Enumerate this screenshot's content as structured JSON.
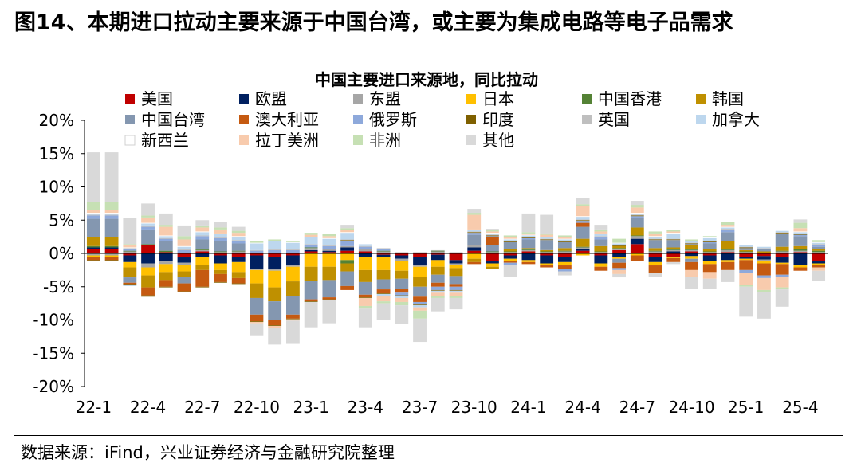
{
  "figure": {
    "title": "图14、本期进口拉动主要来源于中国台湾，或主要为集成电路等电子品需求",
    "source": "数据来源：iFind，兴业证券经济与金融研究院整理"
  },
  "chart_data": {
    "type": "bar",
    "stacked": true,
    "title": "中国主要进口来源地，同比拉动",
    "xlabel": "",
    "ylabel": "",
    "ylim": [
      -20,
      20
    ],
    "ytick_labels": [
      "20%",
      "15%",
      "10%",
      "5%",
      "0%",
      "-5%",
      "-10%",
      "-15%",
      "-20%"
    ],
    "grid": false,
    "legend_position": "top",
    "categories": [
      "22-1",
      "22-2",
      "22-3",
      "22-4",
      "22-5",
      "22-6",
      "22-7",
      "22-8",
      "22-9",
      "22-10",
      "22-11",
      "22-12",
      "23-1",
      "23-2",
      "23-3",
      "23-4",
      "23-5",
      "23-6",
      "23-7",
      "23-8",
      "23-9",
      "23-10",
      "23-11",
      "23-12",
      "24-1",
      "24-2",
      "24-3",
      "24-4",
      "24-5",
      "24-6",
      "24-7",
      "24-8",
      "24-9",
      "24-10",
      "24-11",
      "24-12",
      "25-1",
      "25-2",
      "25-3",
      "25-4",
      "25-5"
    ],
    "x_tick_labels": [
      "22-1",
      "22-4",
      "22-7",
      "22-10",
      "23-1",
      "23-4",
      "23-7",
      "23-10",
      "24-1",
      "24-4",
      "24-7",
      "24-10",
      "25-1",
      "25-4"
    ],
    "series": [
      {
        "name": "美国",
        "color": "#C00000",
        "values": [
          0.6,
          0.6,
          -0.3,
          1.2,
          0.2,
          -0.6,
          0.3,
          -0.3,
          -0.5,
          -0.3,
          -0.5,
          -0.3,
          0.3,
          0.2,
          0.4,
          0.3,
          -0.2,
          -0.3,
          -0.5,
          -0.2,
          -1.0,
          0.4,
          -1.2,
          -0.3,
          0.3,
          -0.3,
          -0.5,
          0.4,
          -0.3,
          0.5,
          1.4,
          -0.5,
          -0.5,
          0.3,
          -0.3,
          0.2,
          -0.5,
          -0.4,
          -0.6,
          0.2,
          -1.2
        ]
      },
      {
        "name": "欧盟",
        "color": "#002060",
        "values": [
          0.3,
          0.3,
          -1.0,
          -1.5,
          -1.2,
          -0.8,
          -0.5,
          -1.2,
          -0.8,
          -2.0,
          -1.8,
          -1.5,
          0.2,
          0.2,
          0.5,
          -0.5,
          -0.3,
          -0.5,
          -1.2,
          -0.8,
          -0.5,
          0.5,
          -0.3,
          -0.5,
          -1.0,
          -1.2,
          -0.8,
          0.2,
          -1.2,
          -0.5,
          0.8,
          -0.8,
          0.3,
          -0.4,
          -0.8,
          -1.0,
          -0.3,
          -0.5,
          -0.8,
          -1.8,
          -0.3
        ]
      },
      {
        "name": "东盟",
        "color": "#A6A6A6",
        "values": [
          -0.3,
          -0.3,
          0.3,
          -0.6,
          -0.4,
          -0.3,
          0.2,
          0.2,
          0.3,
          -0.2,
          -0.3,
          -0.2,
          0.3,
          0.2,
          0.2,
          0.3,
          0.3,
          -0.3,
          -0.3,
          0.3,
          -0.2,
          0.3,
          0.2,
          0.2,
          0.2,
          0.2,
          0.3,
          0.3,
          0.2,
          0.2,
          0.4,
          0.3,
          0.2,
          0.2,
          0.2,
          0.3,
          0.2,
          -0.3,
          0.3,
          0.2,
          0.2
        ]
      },
      {
        "name": "日本",
        "color": "#FFC000",
        "values": [
          -0.3,
          -0.3,
          -0.8,
          -1.2,
          -1.2,
          -1.0,
          -1.2,
          -1.0,
          -1.5,
          -2.0,
          -2.5,
          -2.2,
          -2.0,
          -2.0,
          -1.0,
          -2.0,
          -2.0,
          -1.5,
          -1.5,
          -1.0,
          -0.5,
          -0.8,
          -0.5,
          -0.3,
          -0.3,
          -0.3,
          -0.5,
          -0.3,
          -0.5,
          -0.3,
          -0.3,
          -0.5,
          -0.2,
          -0.4,
          -0.5,
          -0.3,
          -0.2,
          -0.3,
          -0.2,
          -0.3,
          -0.2
        ]
      },
      {
        "name": "中国香港",
        "color": "#548235",
        "values": [
          0.2,
          0.2,
          0.1,
          0.2,
          0.2,
          0.1,
          0.1,
          0.1,
          0.1,
          0.1,
          0.1,
          0.1,
          0.1,
          0.1,
          -0.5,
          0.1,
          0.1,
          0.1,
          0.1,
          0.1,
          0.1,
          0.1,
          0.1,
          0.1,
          0.1,
          0.1,
          0.1,
          0.1,
          0.1,
          0.1,
          0.1,
          0.1,
          0.1,
          0.1,
          0.1,
          0.2,
          0.1,
          0.1,
          0.1,
          0.2,
          0.2
        ]
      },
      {
        "name": "韩国",
        "color": "#BF9000",
        "values": [
          1.3,
          1.3,
          -1.5,
          -1.8,
          -1.2,
          -0.8,
          -0.8,
          -0.6,
          -0.9,
          -2.2,
          -2.1,
          -2.2,
          -2.1,
          -2.0,
          -1.2,
          -1.8,
          -1.4,
          -1.2,
          -1.5,
          -1.2,
          -1.2,
          -0.5,
          -0.3,
          0.3,
          0.2,
          0.2,
          0.4,
          1.2,
          0.8,
          0.3,
          1.2,
          0.4,
          0.3,
          0.6,
          0.4,
          1.2,
          0.2,
          0.2,
          0.6,
          0.5,
          0.3
        ]
      },
      {
        "name": "中国台湾",
        "color": "#8497B0",
        "values": [
          2.8,
          2.8,
          -0.8,
          2.2,
          1.5,
          -1.0,
          1.5,
          1.5,
          1.1,
          -2.5,
          -2.8,
          -2.8,
          -2.8,
          -2.6,
          -2.2,
          -1.9,
          -1.5,
          -1.5,
          -1.5,
          -1.2,
          -1.2,
          1.5,
          0.9,
          1.1,
          1.3,
          1.3,
          0.9,
          1.8,
          1.0,
          -0.6,
          1.4,
          1.0,
          0.9,
          -0.5,
          0.8,
          1.3,
          0.3,
          0.3,
          2.0,
          1.5,
          0.3
        ]
      },
      {
        "name": "澳大利亚",
        "color": "#C55A11",
        "values": [
          -0.4,
          -0.4,
          -0.2,
          -1.2,
          -1.0,
          -1.2,
          -2.5,
          -1.2,
          -0.8,
          -1.0,
          -0.8,
          -0.6,
          -0.3,
          -0.3,
          -0.6,
          -0.4,
          -0.6,
          -0.6,
          -0.8,
          -0.6,
          -0.4,
          -0.3,
          1.2,
          -0.3,
          -0.3,
          -0.3,
          -0.5,
          0.6,
          -0.6,
          -0.8,
          -0.8,
          -1.2,
          -0.6,
          -1.2,
          -1.2,
          -1.2,
          -1.5,
          -1.8,
          -1.6,
          -0.5,
          -0.4
        ]
      },
      {
        "name": "俄罗斯",
        "color": "#8EA9DB",
        "values": [
          0.5,
          0.5,
          0.3,
          0.4,
          0.3,
          0.4,
          0.5,
          0.5,
          0.4,
          0.3,
          0.4,
          0.4,
          0.4,
          0.4,
          0.8,
          0.3,
          0.3,
          -0.4,
          -0.4,
          -0.5,
          -0.5,
          0.3,
          0.2,
          -0.3,
          0.2,
          0.2,
          -0.4,
          0.3,
          0.3,
          -0.3,
          0.3,
          0.2,
          0.2,
          0.2,
          0.2,
          0.3,
          -0.4,
          -0.4,
          -0.3,
          0.2,
          0.2
        ]
      },
      {
        "name": "印度",
        "color": "#7F6000",
        "values": [
          -0.1,
          -0.1,
          -0.1,
          -0.2,
          -0.1,
          -0.1,
          -0.1,
          -0.1,
          -0.1,
          -0.1,
          -0.1,
          -0.1,
          -0.1,
          -0.1,
          0.1,
          -0.1,
          -0.1,
          -0.1,
          -0.1,
          -0.1,
          -0.1,
          0.1,
          0.1,
          0.1,
          0.1,
          0.1,
          0.1,
          0.1,
          0.1,
          0.1,
          0.1,
          0.1,
          0.1,
          0.1,
          0.1,
          0.1,
          0.1,
          0.1,
          0.1,
          0.1,
          0.1
        ]
      },
      {
        "name": "英国",
        "color": "#BFBFBF",
        "values": [
          0.1,
          0.1,
          0.1,
          0.2,
          0.1,
          0.1,
          0.1,
          0.1,
          0.1,
          0.1,
          0.1,
          0.1,
          0.1,
          0.1,
          0.1,
          0.1,
          0.1,
          0.1,
          0.1,
          0.1,
          0.1,
          0.1,
          0.1,
          0.1,
          0.1,
          0.1,
          0.1,
          0.1,
          0.1,
          0.1,
          0.1,
          0.1,
          0.1,
          0.1,
          0.1,
          0.1,
          0.1,
          0.1,
          0.1,
          0.1,
          0.1
        ]
      },
      {
        "name": "加拿大",
        "color": "#BDD7EE",
        "values": [
          0.2,
          0.2,
          -0.2,
          0.3,
          0.3,
          0.4,
          0.5,
          0.5,
          0.5,
          1.0,
          1.2,
          1.0,
          1.0,
          1.0,
          1.0,
          0.3,
          -0.3,
          -0.3,
          -0.3,
          -0.3,
          -0.3,
          0.2,
          0.2,
          0.2,
          0.2,
          0.2,
          0.2,
          0.4,
          0.3,
          0.2,
          0.2,
          0.3,
          0.8,
          0.2,
          0.4,
          0.2,
          0.2,
          0.2,
          0.2,
          0.2,
          0.2
        ]
      },
      {
        "name": "新西兰",
        "color": "#FFFFFF",
        "values": [
          0.1,
          0.1,
          0.1,
          0.1,
          0.1,
          0.1,
          0.1,
          0.1,
          0.1,
          0.1,
          0.1,
          0.1,
          0.1,
          0.1,
          0.1,
          0.1,
          0.1,
          0.1,
          0.1,
          0.1,
          0.1,
          0.1,
          0.1,
          0.1,
          0.1,
          0.1,
          0.1,
          0.1,
          0.1,
          0.1,
          0.1,
          0.1,
          0.1,
          0.1,
          0.1,
          0.1,
          0.1,
          0.1,
          0.1,
          0.1,
          0.1
        ]
      },
      {
        "name": "拉丁美洲",
        "color": "#F8CBAD",
        "values": [
          0.4,
          0.4,
          0.3,
          0.8,
          1.3,
          1.0,
          0.6,
          0.6,
          0.5,
          -0.2,
          -0.3,
          -0.2,
          0.3,
          0.3,
          0.3,
          -1.2,
          -0.8,
          -0.6,
          -0.5,
          -0.5,
          -0.5,
          2.2,
          0.2,
          0.3,
          0.2,
          0.3,
          0.3,
          1.5,
          0.3,
          -0.6,
          0.8,
          0.4,
          0.2,
          -1.0,
          -1.0,
          0.3,
          -1.8,
          -1.8,
          -1.6,
          0.5,
          -0.5
        ]
      },
      {
        "name": "非洲",
        "color": "#C6E0B4",
        "values": [
          1.2,
          1.2,
          0.2,
          0.3,
          0.3,
          0.5,
          0.3,
          0.3,
          0.3,
          0.2,
          0.2,
          0.2,
          0.3,
          0.3,
          0.3,
          -0.4,
          -0.3,
          -0.5,
          -1.2,
          -0.3,
          -0.3,
          0.3,
          0.2,
          0.2,
          0.2,
          0.2,
          0.2,
          0.3,
          0.3,
          0.6,
          0.4,
          0.3,
          0.2,
          0.2,
          0.2,
          0.4,
          -0.3,
          -0.3,
          -0.3,
          0.8,
          0.3
        ]
      },
      {
        "name": "其他",
        "color": "#D9D9D9",
        "values": [
          7.5,
          7.5,
          3.9,
          1.8,
          1.7,
          1.6,
          0.8,
          0.8,
          0.6,
          -1.8,
          -2.5,
          -3.5,
          -3.8,
          -3.5,
          0.5,
          -2.8,
          -2.5,
          -2.8,
          -3.5,
          -2.0,
          -1.7,
          0.6,
          0.2,
          -1.8,
          2.8,
          2.8,
          -0.6,
          0.9,
          0.7,
          -0.5,
          0.6,
          -0.5,
          -0.3,
          -1.8,
          -1.5,
          -1.8,
          -4.5,
          -4.0,
          -2.6,
          0.5,
          -1.5
        ]
      }
    ]
  }
}
